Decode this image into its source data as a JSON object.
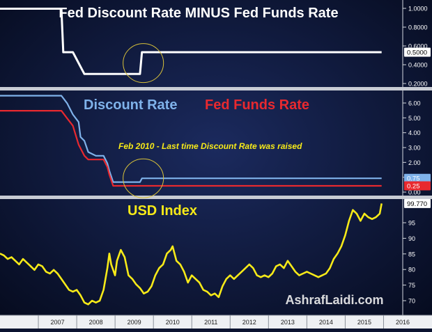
{
  "chart_data": [
    {
      "type": "line",
      "title": "Fed Discount Rate MINUS Fed Funds Rate",
      "ylim": [
        0.1,
        1.1
      ],
      "yticks": [
        "1.0000",
        "0.8000",
        "0.6000",
        "0.4000",
        "0.2000"
      ],
      "last_value_label": "0.5000",
      "series": [
        {
          "values": [
            [
              2006.0,
              1.0
            ],
            [
              2007.6,
              1.0
            ],
            [
              2007.65,
              0.5
            ],
            [
              2007.9,
              0.5
            ],
            [
              2008.2,
              0.25
            ],
            [
              2009.65,
              0.25
            ],
            [
              2009.7,
              0.5
            ],
            [
              2015.95,
              0.5
            ]
          ],
          "color": "#ffffff"
        }
      ],
      "annotation": "circle-around-feb-2010"
    },
    {
      "type": "line",
      "title": "",
      "ylim": [
        -0.4,
        6.6
      ],
      "yticks": [
        "6.00",
        "5.00",
        "4.00",
        "3.00",
        "2.00",
        "1.00",
        "0.00"
      ],
      "series": [
        {
          "name": "Discount Rate",
          "color": "#7fb2ea",
          "last_value_label": "0.75",
          "values": [
            [
              2006.0,
              6.25
            ],
            [
              2007.6,
              6.25
            ],
            [
              2007.75,
              5.75
            ],
            [
              2007.9,
              5.0
            ],
            [
              2008.05,
              4.5
            ],
            [
              2008.1,
              3.5
            ],
            [
              2008.2,
              3.25
            ],
            [
              2008.3,
              2.5
            ],
            [
              2008.5,
              2.25
            ],
            [
              2008.7,
              2.25
            ],
            [
              2008.8,
              1.75
            ],
            [
              2008.85,
              1.25
            ],
            [
              2008.95,
              0.5
            ],
            [
              2009.65,
              0.5
            ],
            [
              2009.7,
              0.75
            ],
            [
              2015.95,
              0.75
            ]
          ]
        },
        {
          "name": "Fed Funds Rate",
          "color": "#e8292f",
          "last_value_label": "0.25",
          "values": [
            [
              2006.0,
              5.25
            ],
            [
              2007.6,
              5.25
            ],
            [
              2007.75,
              4.75
            ],
            [
              2007.9,
              4.25
            ],
            [
              2008.05,
              3.0
            ],
            [
              2008.2,
              2.25
            ],
            [
              2008.3,
              2.0
            ],
            [
              2008.7,
              2.0
            ],
            [
              2008.8,
              1.5
            ],
            [
              2008.85,
              1.0
            ],
            [
              2008.95,
              0.25
            ],
            [
              2015.95,
              0.25
            ]
          ]
        }
      ],
      "annotation": "Feb 2010 - Last time Discount Rate was raised"
    },
    {
      "type": "line",
      "title": "USD Index",
      "ylim": [
        69,
        101
      ],
      "yticks": [
        "95",
        "90",
        "85",
        "80",
        "75",
        "70"
      ],
      "last_value_label": "99.770",
      "watermark": "AshrafLaidi.com",
      "series": [
        {
          "color": "#f7ea18",
          "values": [
            [
              2006.0,
              86
            ],
            [
              2006.1,
              85.5
            ],
            [
              2006.2,
              84.5
            ],
            [
              2006.3,
              85
            ],
            [
              2006.4,
              84
            ],
            [
              2006.5,
              83
            ],
            [
              2006.6,
              84.5
            ],
            [
              2006.7,
              83.5
            ],
            [
              2006.8,
              82.5
            ],
            [
              2006.9,
              81.5
            ],
            [
              2007.0,
              83
            ],
            [
              2007.1,
              82.5
            ],
            [
              2007.2,
              81
            ],
            [
              2007.3,
              80.5
            ],
            [
              2007.4,
              81.5
            ],
            [
              2007.5,
              80.5
            ],
            [
              2007.6,
              79
            ],
            [
              2007.7,
              77.5
            ],
            [
              2007.8,
              76
            ],
            [
              2007.9,
              75.5
            ],
            [
              2008.0,
              76
            ],
            [
              2008.1,
              74.5
            ],
            [
              2008.2,
              72.5
            ],
            [
              2008.3,
              72
            ],
            [
              2008.4,
              73
            ],
            [
              2008.5,
              72.5
            ],
            [
              2008.6,
              73
            ],
            [
              2008.7,
              76
            ],
            [
              2008.8,
              82
            ],
            [
              2008.85,
              86
            ],
            [
              2008.9,
              83
            ],
            [
              2009.0,
              80
            ],
            [
              2009.05,
              84
            ],
            [
              2009.15,
              87
            ],
            [
              2009.25,
              85
            ],
            [
              2009.35,
              80
            ],
            [
              2009.45,
              79
            ],
            [
              2009.55,
              77.5
            ],
            [
              2009.65,
              76.5
            ],
            [
              2009.75,
              75
            ],
            [
              2009.85,
              75.5
            ],
            [
              2009.95,
              77
            ],
            [
              2010.05,
              80
            ],
            [
              2010.15,
              82
            ],
            [
              2010.25,
              83
            ],
            [
              2010.35,
              86
            ],
            [
              2010.45,
              87
            ],
            [
              2010.5,
              88
            ],
            [
              2010.6,
              84
            ],
            [
              2010.7,
              83
            ],
            [
              2010.8,
              81
            ],
            [
              2010.9,
              78
            ],
            [
              2011.0,
              80
            ],
            [
              2011.1,
              79
            ],
            [
              2011.2,
              78
            ],
            [
              2011.3,
              76
            ],
            [
              2011.4,
              75.5
            ],
            [
              2011.5,
              74.5
            ],
            [
              2011.6,
              75
            ],
            [
              2011.7,
              74
            ],
            [
              2011.8,
              77
            ],
            [
              2011.9,
              79
            ],
            [
              2012.0,
              80
            ],
            [
              2012.1,
              79
            ],
            [
              2012.2,
              80
            ],
            [
              2012.3,
              81
            ],
            [
              2012.4,
              82
            ],
            [
              2012.5,
              83
            ],
            [
              2012.6,
              82
            ],
            [
              2012.7,
              80
            ],
            [
              2012.8,
              79.5
            ],
            [
              2012.9,
              80
            ],
            [
              2013.0,
              79.5
            ],
            [
              2013.1,
              80.5
            ],
            [
              2013.2,
              82.5
            ],
            [
              2013.3,
              83
            ],
            [
              2013.4,
              82
            ],
            [
              2013.5,
              84
            ],
            [
              2013.6,
              82.5
            ],
            [
              2013.7,
              81
            ],
            [
              2013.8,
              80
            ],
            [
              2013.9,
              80.5
            ],
            [
              2014.0,
              81
            ],
            [
              2014.1,
              80.5
            ],
            [
              2014.2,
              80
            ],
            [
              2014.3,
              79.5
            ],
            [
              2014.4,
              80
            ],
            [
              2014.5,
              80.5
            ],
            [
              2014.6,
              82
            ],
            [
              2014.7,
              84.5
            ],
            [
              2014.8,
              86
            ],
            [
              2014.9,
              88
            ],
            [
              2015.0,
              91
            ],
            [
              2015.1,
              95
            ],
            [
              2015.2,
              98
            ],
            [
              2015.3,
              97
            ],
            [
              2015.4,
              95
            ],
            [
              2015.5,
              97
            ],
            [
              2015.6,
              96
            ],
            [
              2015.7,
              95.5
            ],
            [
              2015.8,
              96
            ],
            [
              2015.9,
              97
            ],
            [
              2015.95,
              99.77
            ]
          ]
        }
      ]
    }
  ],
  "x_axis": {
    "type": "time",
    "range": [
      2006.0,
      2016.5
    ],
    "tick_labels": [
      {
        "year": 2007,
        "label": "2007"
      },
      {
        "year": 2008,
        "label": "2008"
      },
      {
        "year": 2009,
        "label": "2009"
      },
      {
        "year": 2010,
        "label": "2010"
      },
      {
        "year": 2011,
        "label": "2011"
      },
      {
        "year": 2012,
        "label": "2012"
      },
      {
        "year": 2013,
        "label": "2013"
      },
      {
        "year": 2014,
        "label": "2014"
      },
      {
        "year": 2015,
        "label": "2015"
      },
      {
        "year": 2016,
        "label": "2016"
      }
    ]
  },
  "colors": {
    "background": "#0b1330",
    "axis_text": "#ffffff",
    "divider": "#d3d7de",
    "highlight_circle": "#d9c23a"
  }
}
